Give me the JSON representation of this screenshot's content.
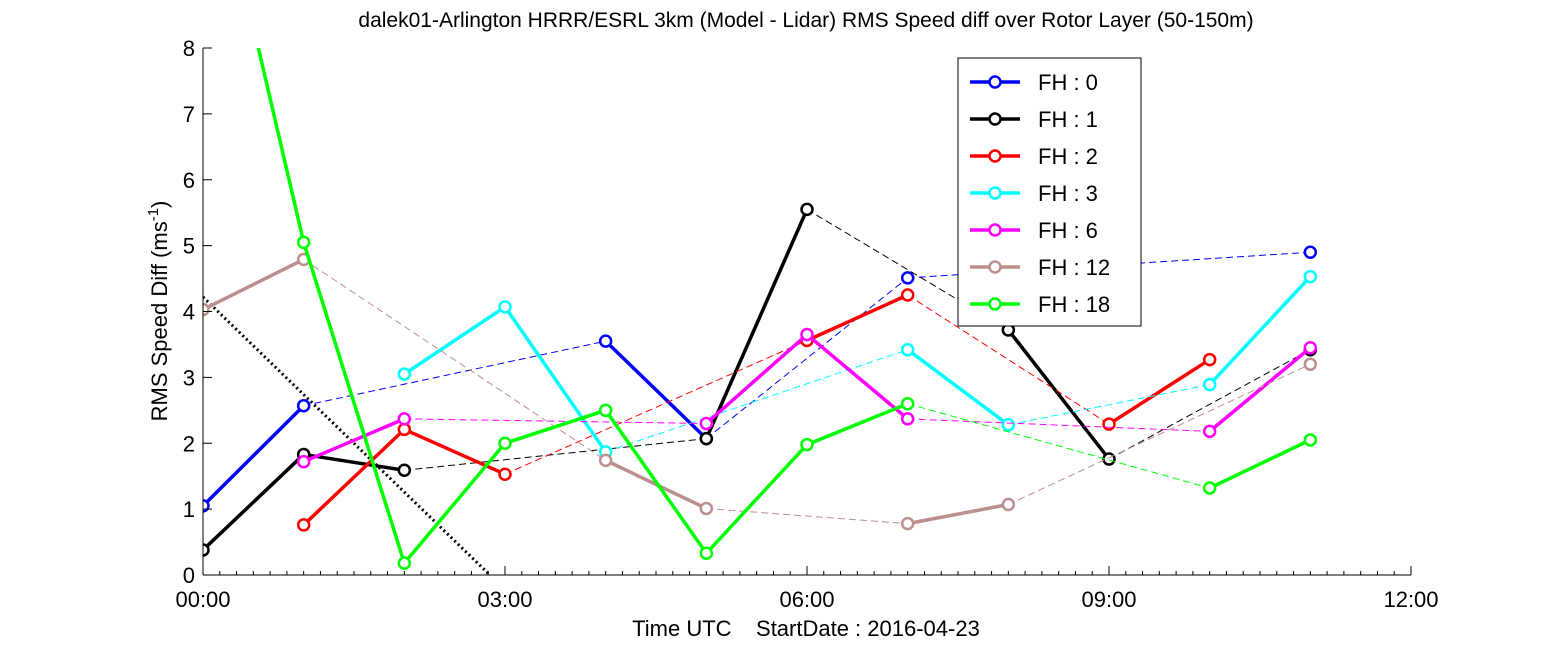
{
  "chart_data": {
    "type": "line",
    "title": "dalek01-Arlington HRRR/ESRL 3km (Model - Lidar) RMS Speed diff over Rotor Layer (50-150m)",
    "ylabel_main": "RMS Speed Diff (ms",
    "ylabel_sup": "-1",
    "ylabel_close": ")",
    "xlabel": "Time UTC    StartDate : 2016-04-23",
    "xlim": [
      0,
      12
    ],
    "ylim": [
      0,
      8
    ],
    "x_ticks": [
      0,
      3,
      6,
      9,
      12
    ],
    "x_tick_labels": [
      "00:00",
      "03:00",
      "06:00",
      "09:00",
      "12:00"
    ],
    "y_ticks": [
      0,
      1,
      2,
      3,
      4,
      5,
      6,
      7,
      8
    ],
    "y_tick_labels": [
      "0",
      "1",
      "2",
      "3",
      "4",
      "5",
      "6",
      "7",
      "8"
    ],
    "grid": false,
    "legend_position": "top-right",
    "series": [
      {
        "name": "FH : 0",
        "color": "#0000ff",
        "points": [
          [
            0,
            1.05
          ],
          [
            1,
            2.57
          ],
          [
            4,
            3.55
          ],
          [
            5,
            2.07
          ],
          [
            7,
            4.51
          ],
          [
            11,
            4.9
          ]
        ]
      },
      {
        "name": "FH : 1",
        "color": "#000000",
        "points": [
          [
            0,
            0.38
          ],
          [
            1,
            1.83
          ],
          [
            2,
            1.59
          ],
          [
            5,
            2.07
          ],
          [
            6,
            5.55
          ],
          [
            8,
            3.72
          ],
          [
            9,
            1.76
          ],
          [
            11,
            3.42
          ]
        ]
      },
      {
        "name": "FH : 2",
        "color": "#ff0000",
        "points": [
          [
            1,
            0.76
          ],
          [
            2,
            2.21
          ],
          [
            3,
            1.53
          ],
          [
            6,
            3.56
          ],
          [
            7,
            4.25
          ],
          [
            9,
            2.29
          ],
          [
            10,
            3.27
          ]
        ]
      },
      {
        "name": "FH : 3",
        "color": "#00ffff",
        "points": [
          [
            2,
            3.05
          ],
          [
            3,
            4.07
          ],
          [
            4,
            1.87
          ],
          [
            7,
            3.42
          ],
          [
            8,
            2.28
          ],
          [
            10,
            2.89
          ],
          [
            11,
            4.53
          ]
        ]
      },
      {
        "name": "FH : 6",
        "color": "#ff00ff",
        "points": [
          [
            1,
            1.72
          ],
          [
            2,
            2.37
          ],
          [
            5,
            2.3
          ],
          [
            6,
            3.65
          ],
          [
            7,
            2.37
          ],
          [
            10,
            2.18
          ],
          [
            11,
            3.45
          ]
        ]
      },
      {
        "name": "FH : 12",
        "color": "#bc8f8f",
        "points": [
          [
            0,
            4.03
          ],
          [
            1,
            4.79
          ],
          [
            4,
            1.74
          ],
          [
            5,
            1.01
          ],
          [
            7,
            0.78
          ],
          [
            8,
            1.07
          ],
          [
            11,
            3.2
          ]
        ]
      },
      {
        "name": "FH : 18",
        "color": "#00ff00",
        "points": [
          [
            0.55,
            8.0
          ],
          [
            1,
            5.05
          ],
          [
            2,
            0.18
          ],
          [
            3,
            2.0
          ],
          [
            4,
            2.5
          ],
          [
            5,
            0.33
          ],
          [
            6,
            1.98
          ],
          [
            7,
            2.6
          ],
          [
            10,
            1.32
          ],
          [
            11,
            2.05
          ]
        ]
      }
    ],
    "extra_lines": [
      {
        "style": "black dotted",
        "points": [
          [
            0,
            4.22
          ],
          [
            2.85,
            0
          ]
        ]
      }
    ]
  }
}
